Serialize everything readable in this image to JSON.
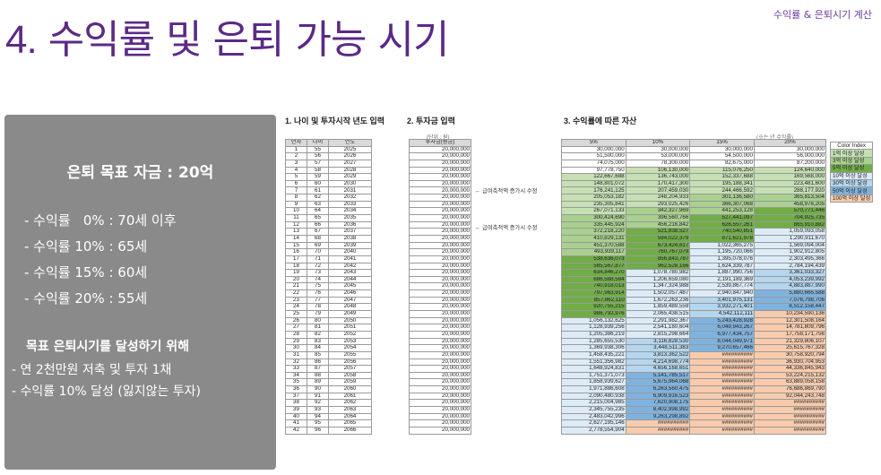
{
  "header": {
    "title_num": "4.",
    "title_text": "수익률 및 은퇴 가능 시기",
    "corner": "수익률 & 은퇴시기 계산"
  },
  "panel": {
    "goal": "은퇴 목표 자금 : 20억",
    "rates": [
      "- 수익률   0% : 70세 이후",
      "- 수익률 10% : 65세",
      "- 수익률 15% : 60세",
      "- 수익률 20% : 55세"
    ],
    "heading": "목표 은퇴시기를 달성하기 위해",
    "items": [
      "- 연 2천만원 저축 및 투자 1채",
      "- 수익률 10% 달성 (잃지않는 투자)"
    ]
  },
  "sheet": {
    "sec1": "1. 나이 및 투자시작 년도 입력",
    "sec2": "2. 투자금 입력",
    "sec3": "3. 수익률에 따른 자산",
    "unit_left": "(단위 : 원)",
    "unit_right": "(※는 년 수익률)",
    "note": "← 급여축적액 증가시 수정",
    "left_headers": [
      "년차",
      "나이",
      "연도"
    ],
    "invest_header": "투자금(원금)",
    "rate_headers": [
      "5%",
      "10%",
      "15%",
      "20%"
    ],
    "colors": {
      "green1": "#e2f0d9",
      "green2": "#c6e0b4",
      "green3": "#a9d08e",
      "green4": "#70ad47",
      "blue1": "#ddebf7",
      "blue2": "#b4d6ee",
      "blue3": "#7fb3df",
      "pink": "#f8cbad"
    },
    "rows": [
      [
        "1",
        "55",
        "2025",
        "20,000,000",
        "30,000,000",
        "30,000,000",
        "30,000,000",
        "30,000,000"
      ],
      [
        "2",
        "56",
        "2026",
        "20,000,000",
        "51,500,000",
        "53,000,000",
        "54,500,000",
        "56,000,000"
      ],
      [
        "3",
        "57",
        "2027",
        "20,000,000",
        "74,075,000",
        "78,300,000",
        "82,675,000",
        "87,200,000"
      ],
      [
        "4",
        "58",
        "2028",
        "20,000,000",
        "97,778,750",
        "106,130,000",
        "115,076,250",
        "124,640,000"
      ],
      [
        "5",
        "59",
        "2029",
        "20,000,000",
        "122,667,688",
        "136,743,000",
        "152,337,688",
        "169,568,000"
      ],
      [
        "6",
        "60",
        "2030",
        "20,000,000",
        "148,801,072",
        "170,417,300",
        "195,188,341",
        "223,481,600"
      ],
      [
        "7",
        "61",
        "2031",
        "20,000,000",
        "176,241,125",
        "207,459,030",
        "244,466,592",
        "288,177,920"
      ],
      [
        "8",
        "62",
        "2032",
        "20,000,000",
        "205,053,182",
        "248,204,933",
        "301,136,580",
        "365,813,504"
      ],
      [
        "9",
        "63",
        "2033",
        "20,000,000",
        "235,305,841",
        "293,025,426",
        "366,307,068",
        "458,976,205"
      ],
      [
        "10",
        "64",
        "2034",
        "20,000,000",
        "267,071,133",
        "342,327,969",
        "441,253,128",
        "570,771,446"
      ],
      [
        "11",
        "65",
        "2035",
        "20,000,000",
        "300,424,690",
        "396,560,766",
        "527,441,097",
        "704,925,735"
      ],
      [
        "12",
        "66",
        "2036",
        "20,000,000",
        "335,445,924",
        "456,216,842",
        "626,557,261",
        "865,910,882"
      ],
      [
        "13",
        "67",
        "2037",
        "20,000,000",
        "372,218,220",
        "521,838,527",
        "740,540,851",
        "1,059,093,058"
      ],
      [
        "14",
        "68",
        "2038",
        "20,000,000",
        "410,829,131",
        "594,022,379",
        "871,621,978",
        "1,290,911,670"
      ],
      [
        "15",
        "69",
        "2039",
        "20,000,000",
        "451,370,588",
        "673,424,617",
        "1,022,365,275",
        "1,569,094,004"
      ],
      [
        "16",
        "70",
        "2040",
        "20,000,000",
        "493,939,117",
        "760,767,079",
        "1,195,720,066",
        "1,902,912,805"
      ],
      [
        "17",
        "71",
        "2041",
        "20,000,000",
        "538,636,073",
        "856,843,787",
        "1,395,078,076",
        "2,303,495,366"
      ],
      [
        "18",
        "72",
        "2042",
        "20,000,000",
        "585,567,877",
        "962,528,166",
        "1,624,339,787",
        "2,784,194,439"
      ],
      [
        "19",
        "73",
        "2043",
        "20,000,000",
        "634,846,270",
        "1,078,780,982",
        "1,887,990,756",
        "3,361,033,327"
      ],
      [
        "20",
        "74",
        "2044",
        "20,000,000",
        "686,588,584",
        "1,206,659,080",
        "2,191,189,369",
        "4,053,239,992"
      ],
      [
        "21",
        "75",
        "2045",
        "20,000,000",
        "740,918,013",
        "1,347,324,988",
        "2,539,867,774",
        "4,883,887,990"
      ],
      [
        "22",
        "76",
        "2046",
        "20,000,000",
        "797,963,914",
        "1,502,057,487",
        "2,940,847,940",
        "5,880,665,588"
      ],
      [
        "23",
        "77",
        "2047",
        "20,000,000",
        "857,862,110",
        "1,672,263,236",
        "3,401,975,131",
        "7,076,798,706"
      ],
      [
        "24",
        "78",
        "2048",
        "20,000,000",
        "920,755,215",
        "1,859,489,559",
        "3,932,271,401",
        "8,512,158,447"
      ],
      [
        "25",
        "79",
        "2049",
        "20,000,000",
        "986,792,976",
        "2,065,438,515",
        "4,542,112,111",
        "10,234,590,136"
      ],
      [
        "26",
        "80",
        "2050",
        "20,000,000",
        "1,056,132,625",
        "2,291,982,367",
        "5,243,428,928",
        "12,301,508,164"
      ],
      [
        "27",
        "81",
        "2051",
        "20,000,000",
        "1,128,939,256",
        "2,541,180,604",
        "6,049,943,267",
        "14,781,809,796"
      ],
      [
        "28",
        "82",
        "2052",
        "20,000,000",
        "1,205,386,219",
        "2,815,298,664",
        "6,977,434,757",
        "17,758,171,756"
      ],
      [
        "29",
        "83",
        "2053",
        "20,000,000",
        "1,285,655,530",
        "3,116,828,530",
        "8,044,049,971",
        "21,329,806,107"
      ],
      [
        "30",
        "84",
        "2054",
        "20,000,000",
        "1,369,938,306",
        "3,448,511,383",
        "9,270,657,466",
        "25,615,767,328"
      ],
      [
        "31",
        "85",
        "2055",
        "20,000,000",
        "1,458,435,221",
        "3,813,362,522",
        "##########",
        "30,758,920,794"
      ],
      [
        "32",
        "86",
        "2056",
        "20,000,000",
        "1,551,356,982",
        "4,214,698,774",
        "##########",
        "36,930,704,953"
      ],
      [
        "33",
        "87",
        "2057",
        "20,000,000",
        "1,648,924,831",
        "4,656,168,651",
        "##########",
        "44,336,845,943"
      ],
      [
        "34",
        "88",
        "2058",
        "20,000,000",
        "1,751,371,073",
        "5,141,785,517",
        "##########",
        "53,224,215,132"
      ],
      [
        "35",
        "89",
        "2059",
        "20,000,000",
        "1,858,939,627",
        "5,675,964,068",
        "##########",
        "63,889,058,158"
      ],
      [
        "36",
        "90",
        "2060",
        "20,000,000",
        "1,971,886,608",
        "6,263,560,475",
        "##########",
        "76,686,869,790"
      ],
      [
        "37",
        "91",
        "2061",
        "20,000,000",
        "2,090,480,938",
        "6,909,916,523",
        "##########",
        "92,044,243,748"
      ],
      [
        "38",
        "92",
        "2062",
        "20,000,000",
        "2,215,004,985",
        "7,620,908,175",
        "##########",
        "##########"
      ],
      [
        "39",
        "93",
        "2063",
        "20,000,000",
        "2,345,755,235",
        "8,402,998,992",
        "##########",
        "##########"
      ],
      [
        "40",
        "94",
        "2064",
        "20,000,000",
        "2,483,042,996",
        "9,263,298,892",
        "##########",
        "##########"
      ],
      [
        "41",
        "95",
        "2065",
        "20,000,000",
        "2,627,195,146",
        "##########",
        "##########",
        "##########"
      ],
      [
        "42",
        "96",
        "2066",
        "20,000,000",
        "2,778,554,904",
        "##########",
        "##########",
        "##########"
      ]
    ],
    "legend": {
      "title": "Color Index",
      "items": [
        "1억 이상 달성",
        "3억 이상 달성",
        "5억 이상 달성",
        "10억 이상 달성",
        "30억 이상 달성",
        "50억 이상 달성",
        "100억 이상 달성"
      ]
    }
  }
}
